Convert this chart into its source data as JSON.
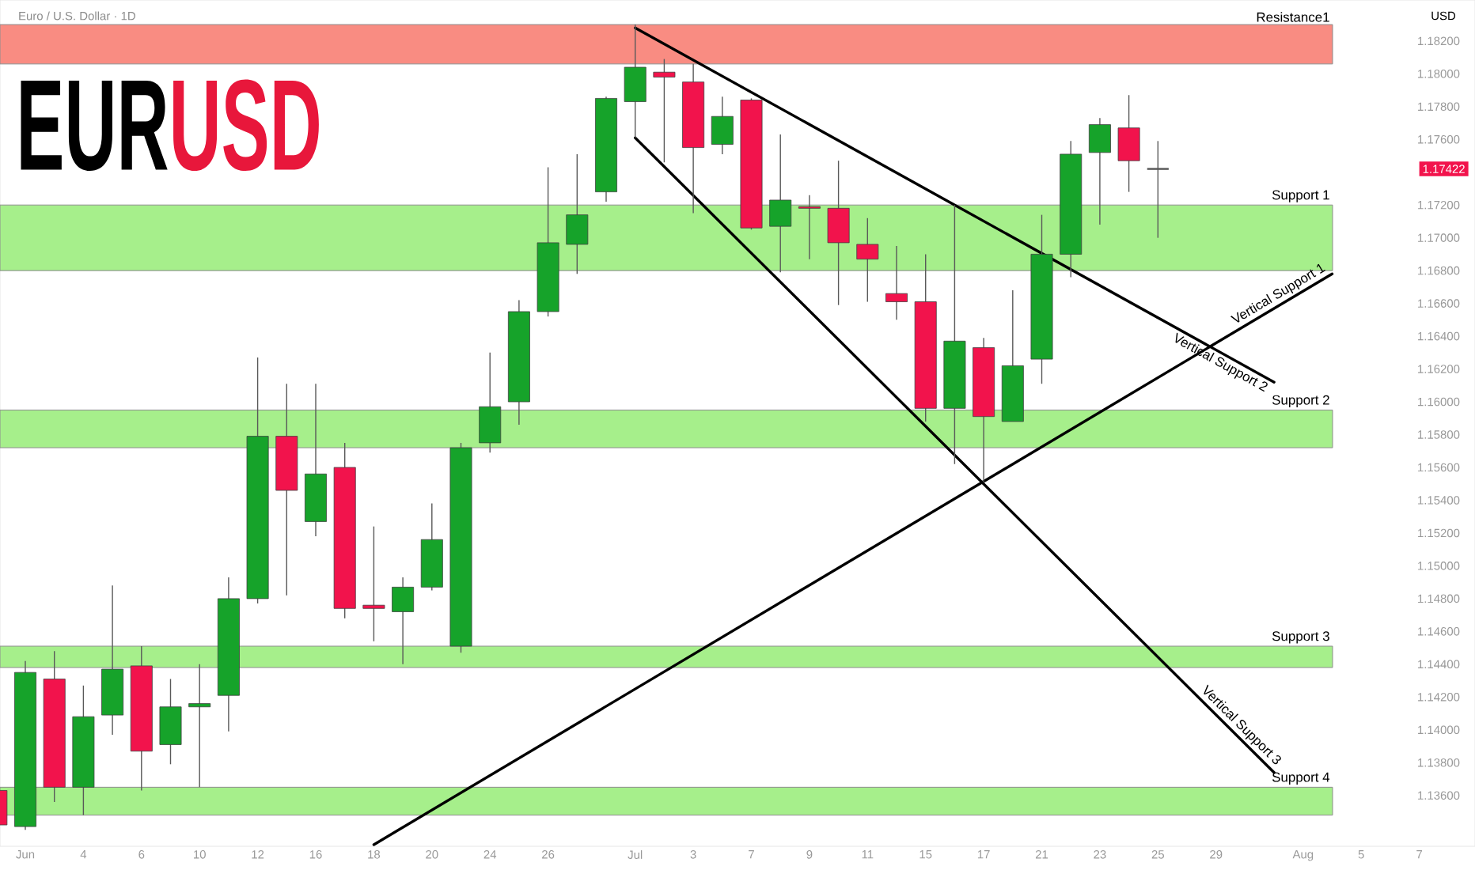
{
  "chart_data": {
    "type": "candlestick",
    "title": "Euro / U.S. Dollar · 1D",
    "ylabel": "USD",
    "annotations": [
      "EUR",
      "USD",
      "1.17422"
    ],
    "categories": [
      null,
      "Jun",
      null,
      "4",
      null,
      "6",
      null,
      "10",
      null,
      "12",
      null,
      "16",
      null,
      "18",
      null,
      "20",
      null,
      "24",
      null,
      "26",
      null,
      null,
      "Jul",
      null,
      "3",
      null,
      "7",
      null,
      "9",
      null,
      "11",
      null,
      "15",
      null,
      "17",
      null,
      "21",
      null,
      "23",
      null,
      "25",
      null,
      "29",
      null,
      null,
      "Aug",
      null,
      "5",
      null,
      "7"
    ],
    "ohlc": [
      [
        1.1363,
        1.1365,
        1.134,
        1.1342
      ],
      [
        1.1341,
        1.1442,
        1.1339,
        1.1435
      ],
      [
        1.1431,
        1.1448,
        1.1356,
        1.1365
      ],
      [
        1.1365,
        1.1427,
        1.1348,
        1.1408
      ],
      [
        1.1409,
        1.1488,
        1.1397,
        1.1437
      ],
      [
        1.1439,
        1.1451,
        1.1363,
        1.1387
      ],
      [
        1.1391,
        1.1431,
        1.1379,
        1.1414
      ],
      [
        1.1414,
        1.144,
        1.1365,
        1.1416
      ],
      [
        1.1421,
        1.1493,
        1.1399,
        1.148
      ],
      [
        1.148,
        1.1627,
        1.1477,
        1.1579
      ],
      [
        1.1579,
        1.1611,
        1.1482,
        1.1546
      ],
      [
        1.1527,
        1.1611,
        1.1518,
        1.1556
      ],
      [
        1.156,
        1.1575,
        1.1468,
        1.1474
      ],
      [
        1.1476,
        1.1524,
        1.1454,
        1.1474
      ],
      [
        1.1472,
        1.1493,
        1.144,
        1.1487
      ],
      [
        1.1487,
        1.1538,
        1.1485,
        1.1516
      ],
      [
        1.1451,
        1.1575,
        1.1447,
        1.1572
      ],
      [
        1.1575,
        1.163,
        1.1569,
        1.1597
      ],
      [
        1.16,
        1.1662,
        1.1586,
        1.1655
      ],
      [
        1.1655,
        1.1743,
        1.1652,
        1.1697
      ],
      [
        1.1696,
        1.1751,
        1.1678,
        1.1714
      ],
      [
        1.1728,
        1.1786,
        1.1722,
        1.1785
      ],
      [
        1.1783,
        1.183,
        1.1761,
        1.1804
      ],
      [
        1.1801,
        1.1809,
        1.1746,
        1.1798
      ],
      [
        1.1795,
        1.1806,
        1.1715,
        1.1755
      ],
      [
        1.1757,
        1.1786,
        1.1751,
        1.1774
      ],
      [
        1.1784,
        1.1785,
        1.1705,
        1.1706
      ],
      [
        1.1707,
        1.1763,
        1.1679,
        1.1723
      ],
      [
        1.1719,
        1.1726,
        1.1687,
        1.1718
      ],
      [
        1.1718,
        1.1747,
        1.1659,
        1.1697
      ],
      [
        1.1696,
        1.1712,
        1.1661,
        1.1687
      ],
      [
        1.1666,
        1.1695,
        1.165,
        1.1661
      ],
      [
        1.1661,
        1.169,
        1.1588,
        1.1596
      ],
      [
        1.1596,
        1.172,
        1.1562,
        1.1637
      ],
      [
        1.1633,
        1.1639,
        1.1551,
        1.1591
      ],
      [
        1.1588,
        1.1668,
        1.1588,
        1.1622
      ],
      [
        1.1626,
        1.1714,
        1.1611,
        1.169
      ],
      [
        1.169,
        1.1759,
        1.1676,
        1.1751
      ],
      [
        1.1752,
        1.1773,
        1.1708,
        1.1769
      ],
      [
        1.1767,
        1.1787,
        1.1728,
        1.1747
      ],
      [
        1.1742,
        1.1759,
        1.17,
        1.1742
      ],
      null,
      null,
      null,
      null,
      null,
      null,
      null,
      null,
      null
    ],
    "colors": [
      "#f2134c",
      "#16a32a",
      "#f2134c",
      "#16a32a",
      "#16a32a",
      "#f2134c",
      "#16a32a",
      "#16a32a",
      "#16a32a",
      "#16a32a",
      "#f2134c",
      "#16a32a",
      "#f2134c",
      "#f2134c",
      "#16a32a",
      "#16a32a",
      "#16a32a",
      "#16a32a",
      "#16a32a",
      "#16a32a",
      "#16a32a",
      "#16a32a",
      "#16a32a",
      "#f2134c",
      "#f2134c",
      "#16a32a",
      "#f2134c",
      "#16a32a",
      "#f2134c",
      "#f2134c",
      "#f2134c",
      "#f2134c",
      "#f2134c",
      "#16a32a",
      "#f2134c",
      "#16a32a",
      "#16a32a",
      "#16a32a",
      "#16a32a",
      "#f2134c",
      "#555555",
      null,
      null,
      null,
      null,
      null,
      null,
      null,
      null,
      null
    ],
    "bands": [
      {
        "axis": "y",
        "from": 1.1806,
        "to": 1.183,
        "label": "Resistance1",
        "color": "#f98c82"
      },
      {
        "axis": "y",
        "from": 1.168,
        "to": 1.172,
        "label": "Support 1",
        "color": "#a6ef8b"
      },
      {
        "axis": "y",
        "from": 1.1572,
        "to": 1.1595,
        "label": "Support 2",
        "color": "#a6ef8b"
      },
      {
        "axis": "y",
        "from": 1.1438,
        "to": 1.1451,
        "label": "Support 3",
        "color": "#a6ef8b"
      },
      {
        "axis": "y",
        "from": 1.1348,
        "to": 1.1365,
        "label": "Support 4",
        "color": "#a6ef8b"
      }
    ],
    "series": [
      {
        "type": "line",
        "name": "Vertical Support 1",
        "color": "#000000",
        "values": [
          null,
          null,
          null,
          null,
          null,
          null,
          null,
          null,
          null,
          null,
          null,
          null,
          null,
          1.133,
          null,
          null,
          null,
          null,
          null,
          null,
          null,
          null,
          null,
          null,
          null,
          null,
          null,
          null,
          null,
          null,
          null,
          null,
          null,
          null,
          null,
          null,
          null,
          null,
          null,
          null,
          null,
          null,
          null,
          null,
          null,
          null,
          1.1678,
          null,
          null,
          null
        ]
      },
      {
        "type": "line",
        "name": "Vertical Support 2",
        "color": "#000000",
        "values": [
          null,
          null,
          null,
          null,
          null,
          null,
          null,
          null,
          null,
          null,
          null,
          null,
          null,
          null,
          null,
          null,
          null,
          null,
          null,
          null,
          null,
          null,
          1.1828,
          null,
          null,
          null,
          null,
          null,
          null,
          null,
          null,
          null,
          null,
          null,
          null,
          null,
          null,
          null,
          null,
          null,
          null,
          null,
          null,
          null,
          1.1612,
          null,
          null,
          null,
          null,
          null
        ]
      },
      {
        "type": "line",
        "name": "Vertical Support 3",
        "color": "#000000",
        "values": [
          null,
          null,
          null,
          null,
          null,
          null,
          null,
          null,
          null,
          null,
          null,
          null,
          null,
          null,
          null,
          null,
          null,
          null,
          null,
          null,
          null,
          null,
          1.1761,
          null,
          null,
          null,
          null,
          null,
          null,
          null,
          null,
          null,
          null,
          null,
          null,
          null,
          null,
          null,
          null,
          null,
          null,
          null,
          null,
          null,
          1.1374,
          null,
          null,
          null,
          null,
          null
        ]
      }
    ],
    "ylim": [
      1.1329,
      1.1845
    ],
    "yticks": [
      {
        "value": 1.182,
        "label": "1.18200"
      },
      {
        "value": 1.18,
        "label": "1.18000"
      },
      {
        "value": 1.178,
        "label": "1.17800"
      },
      {
        "value": 1.176,
        "label": "1.17600"
      },
      {
        "value": 1.172,
        "label": "1.17200"
      },
      {
        "value": 1.17,
        "label": "1.17000"
      },
      {
        "value": 1.168,
        "label": "1.16800"
      },
      {
        "value": 1.166,
        "label": "1.16600"
      },
      {
        "value": 1.164,
        "label": "1.16400"
      },
      {
        "value": 1.162,
        "label": "1.16200"
      },
      {
        "value": 1.16,
        "label": "1.16000"
      },
      {
        "value": 1.158,
        "label": "1.15800"
      },
      {
        "value": 1.156,
        "label": "1.15600"
      },
      {
        "value": 1.154,
        "label": "1.15400"
      },
      {
        "value": 1.152,
        "label": "1.15200"
      },
      {
        "value": 1.15,
        "label": "1.15000"
      },
      {
        "value": 1.148,
        "label": "1.14800"
      },
      {
        "value": 1.146,
        "label": "1.14600"
      },
      {
        "value": 1.144,
        "label": "1.14400"
      },
      {
        "value": 1.142,
        "label": "1.14200"
      },
      {
        "value": 1.14,
        "label": "1.14000"
      },
      {
        "value": 1.138,
        "label": "1.13800"
      },
      {
        "value": 1.136,
        "label": "1.13600"
      }
    ]
  }
}
